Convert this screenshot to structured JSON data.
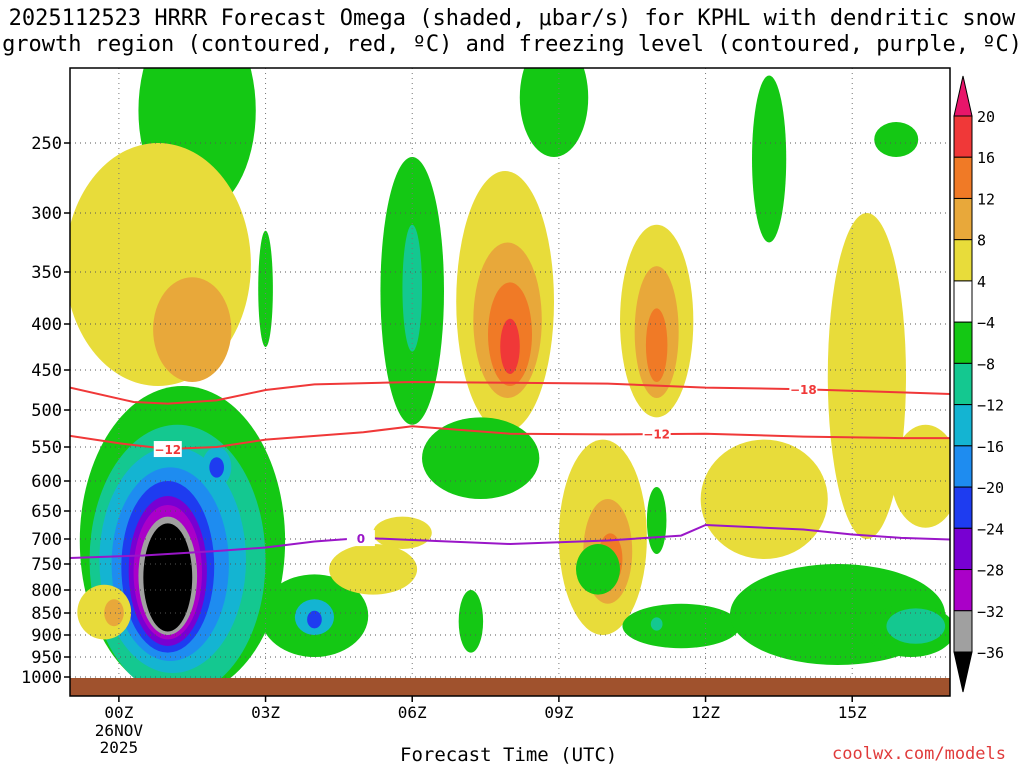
{
  "chart_data": {
    "type": "heatmap",
    "title_line1": "2025112523 HRRR Forecast Omega (shaded, μbar/s) for KPHL with dendritic snow",
    "title_line2": "growth region (contoured, red, ºC) and freezing level (contoured, purple, ºC)",
    "xlabel": "Forecast Time (UTC)",
    "ylabel": "",
    "x_ticks": [
      {
        "t": 0,
        "label": "00Z"
      },
      {
        "t": 3,
        "label": "03Z"
      },
      {
        "t": 6,
        "label": "06Z"
      },
      {
        "t": 9,
        "label": "09Z"
      },
      {
        "t": 12,
        "label": "12Z"
      },
      {
        "t": 15,
        "label": "15Z"
      }
    ],
    "date_label_line1": "26NOV",
    "date_label_line2": "2025",
    "xlim": [
      -1,
      17
    ],
    "y_ticks": [
      250,
      300,
      350,
      400,
      450,
      500,
      550,
      600,
      650,
      700,
      750,
      800,
      850,
      900,
      950,
      1000
    ],
    "ylim_hpa": [
      200,
      1005
    ],
    "colorbar": {
      "labels": [
        "20",
        "16",
        "12",
        "8",
        "4",
        "−4",
        "−8",
        "−12",
        "−16",
        "−20",
        "−24",
        "−28",
        "−32",
        "−36"
      ],
      "colors": [
        "#e8156a",
        "#f03838",
        "#f07a26",
        "#e8a83a",
        "#e8dc3a",
        "#ffffff",
        "#14c814",
        "#14c890",
        "#14b4d2",
        "#1e8cf0",
        "#1e3cf0",
        "#7800d2",
        "#aa00c8",
        "#a0a0a0",
        "#000000"
      ]
    },
    "omega_colors": {
      "y4": "#e8dc3a",
      "y8": "#e8a83a",
      "y12": "#f07a26",
      "y16": "#f03838",
      "g4": "#14c814",
      "g8": "#14c890",
      "g12": "#14b4d2",
      "g16": "#1e8cf0",
      "g20": "#1e3cf0",
      "g24": "#7800d2",
      "g28": "#aa00c8",
      "g32": "#a0a0a0",
      "g36": "#000000"
    },
    "dgz_contours": [
      {
        "label": "−18",
        "color": "#f03838",
        "points": [
          [
            -1,
            472
          ],
          [
            0.3,
            490
          ],
          [
            1,
            492
          ],
          [
            2,
            488
          ],
          [
            3,
            475
          ],
          [
            4,
            468
          ],
          [
            6,
            465
          ],
          [
            8,
            466
          ],
          [
            10,
            467
          ],
          [
            12,
            472
          ],
          [
            14,
            474
          ],
          [
            16,
            478
          ],
          [
            17,
            480
          ]
        ]
      },
      {
        "label": "−12",
        "color": "#f03838",
        "points": [
          [
            -1,
            535
          ],
          [
            0,
            545
          ],
          [
            1,
            553
          ],
          [
            2,
            550
          ],
          [
            3,
            540
          ],
          [
            5,
            530
          ],
          [
            6,
            522
          ],
          [
            8,
            532
          ],
          [
            10,
            533
          ],
          [
            12,
            532
          ],
          [
            14,
            536
          ],
          [
            16,
            538
          ],
          [
            17,
            538
          ]
        ]
      }
    ],
    "freezing_level": {
      "label": "0",
      "color": "#9a16c8",
      "points": [
        [
          -1,
          738
        ],
        [
          0.5,
          733
        ],
        [
          2,
          724
        ],
        [
          3,
          717
        ],
        [
          4,
          705
        ],
        [
          5,
          698
        ],
        [
          6,
          702
        ],
        [
          8,
          710
        ],
        [
          10,
          703
        ],
        [
          11.5,
          694
        ],
        [
          12,
          675
        ],
        [
          14,
          683
        ],
        [
          15,
          692
        ],
        [
          16,
          698
        ],
        [
          17,
          701
        ]
      ]
    },
    "terrain_color": "#a0522d",
    "credit": "coolwx.com/models"
  }
}
